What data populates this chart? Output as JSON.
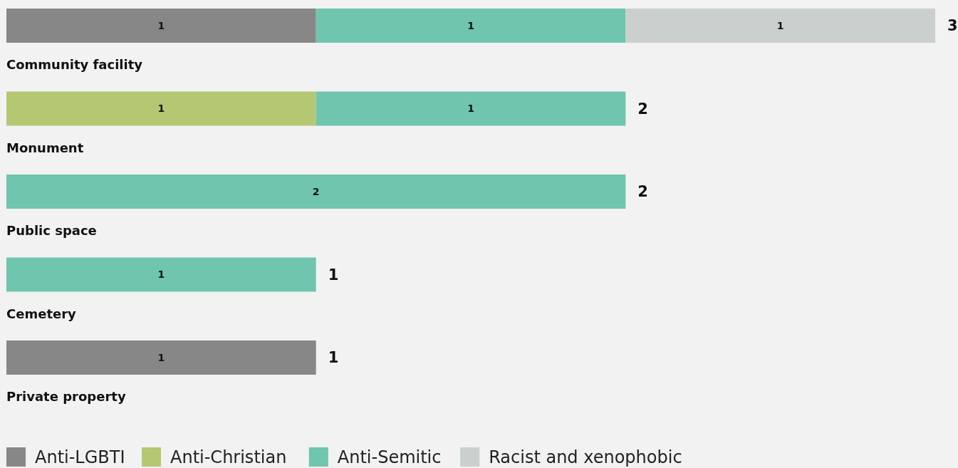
{
  "chart_data": {
    "type": "bar",
    "orientation": "horizontal",
    "stacked": true,
    "categories": [
      "Community facility",
      "Monument",
      "Public space",
      "Cemetery",
      "Private property"
    ],
    "series": [
      {
        "name": "Anti-LGBTI",
        "color": "#878787",
        "values": [
          1,
          null,
          null,
          null,
          1
        ]
      },
      {
        "name": "Anti-Christian",
        "color": "#b4c773",
        "values": [
          null,
          1,
          null,
          null,
          null
        ]
      },
      {
        "name": "Anti-Semitic",
        "color": "#6fc5ad",
        "values": [
          1,
          1,
          2,
          1,
          null
        ]
      },
      {
        "name": "Racist and xenophobic",
        "color": "#cbcfcd",
        "values": [
          1,
          null,
          null,
          null,
          null
        ]
      }
    ],
    "data_labels": true,
    "totals": [
      "3",
      "2",
      "2",
      "1",
      "1"
    ],
    "legend": "bottom",
    "tick_labels": false
  }
}
